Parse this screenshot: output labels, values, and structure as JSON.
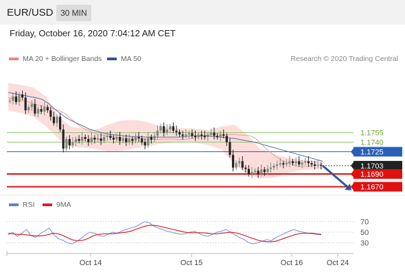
{
  "header": {
    "symbol": "EUR/USD",
    "timeframe": "30 MIN"
  },
  "datetime": "Friday, October 16, 2020 7:04:12 AM CET",
  "legend": {
    "ma20": {
      "label": "MA 20 + Bollinger Bands",
      "color": "#f08080"
    },
    "ma50": {
      "label": "MA 50",
      "color": "#2f5597"
    }
  },
  "credit": "Research © 2020 Trading Central",
  "rsi_legend": {
    "rsi": {
      "label": "RSI",
      "color": "#5b7fd6"
    },
    "ma9": {
      "label": "9MA",
      "color": "#e02020"
    }
  },
  "colors": {
    "up": "#7a8a7a",
    "down": "#222222",
    "green_level": "#8cc56a",
    "blue_level": "#2a5fb8",
    "red_level": "#e01010",
    "band_fill": "#fbd5d2",
    "arrow": "#2f5597"
  },
  "chart_data": [
    {
      "type": "candlestick",
      "title": "EUR/USD",
      "ylim": [
        1.1662,
        1.1845
      ],
      "x_tick_labels": [
        "Oct 14",
        "Oct 15",
        "Oct 16",
        "Oct 24"
      ],
      "levels": [
        {
          "value": "1.1755",
          "kind": "resistance",
          "color": "#8cc56a"
        },
        {
          "value": "1.1740",
          "kind": "resistance",
          "color": "#8cc56a"
        },
        {
          "value": "1.1725",
          "kind": "pivot",
          "color": "#2a5fb8"
        },
        {
          "value": "1.1703",
          "kind": "last_price",
          "color": "#222222"
        },
        {
          "value": "1.1690",
          "kind": "support",
          "color": "#e01010"
        },
        {
          "value": "1.1670",
          "kind": "support",
          "color": "#e01010"
        }
      ],
      "close_series": [
        1.1805,
        1.1812,
        1.1803,
        1.1815,
        1.181,
        1.179,
        1.1795,
        1.18,
        1.1785,
        1.1792,
        1.1788,
        1.1795,
        1.179,
        1.178,
        1.177,
        1.178,
        1.176,
        1.173,
        1.1745,
        1.1735,
        1.174,
        1.1745,
        1.1742,
        1.1748,
        1.1745,
        1.174,
        1.1747,
        1.1744,
        1.1746,
        1.1742,
        1.1748,
        1.175,
        1.1747,
        1.1744,
        1.1748,
        1.1742,
        1.1746,
        1.174,
        1.1745,
        1.1742,
        1.1748,
        1.1746,
        1.174,
        1.1735,
        1.1748,
        1.1744,
        1.175,
        1.1758,
        1.1765,
        1.1755,
        1.176,
        1.1765,
        1.1758,
        1.1756,
        1.1752,
        1.175,
        1.1752,
        1.1754,
        1.175,
        1.1748,
        1.1752,
        1.175,
        1.1748,
        1.1752,
        1.1755,
        1.175,
        1.1748,
        1.1752,
        1.175,
        1.174,
        1.172,
        1.17,
        1.1707,
        1.171,
        1.17,
        1.1698,
        1.169,
        1.1693,
        1.1695,
        1.169,
        1.1697,
        1.1693,
        1.1698,
        1.17,
        1.1703,
        1.1705,
        1.1707,
        1.1705,
        1.1707,
        1.171,
        1.1707,
        1.171,
        1.1705,
        1.1708,
        1.171,
        1.1707,
        1.1705,
        1.1703,
        1.1704,
        1.1703
      ],
      "ma20_series": [
        1.181,
        1.1808,
        1.1806,
        1.1805,
        1.1803,
        1.18,
        1.1798,
        1.1796,
        1.1794,
        1.1792,
        1.1789,
        1.1785,
        1.1778,
        1.1771,
        1.1765,
        1.176,
        1.1757,
        1.1753,
        1.1751,
        1.175,
        1.1749,
        1.1748,
        1.1747,
        1.1746,
        1.1746,
        1.1745,
        1.1745,
        1.1744,
        1.1744,
        1.1744,
        1.1745,
        1.1745,
        1.1745,
        1.1744,
        1.1744,
        1.1745,
        1.1746,
        1.1748,
        1.175,
        1.1752,
        1.1753,
        1.1753,
        1.1752,
        1.1752,
        1.1752,
        1.1751,
        1.1751,
        1.175,
        1.1746,
        1.1738,
        1.173,
        1.1723,
        1.1717,
        1.1712,
        1.1708,
        1.1705,
        1.1703,
        1.1702,
        1.1702,
        1.1703,
        1.1704,
        1.1705
      ],
      "ma50_series": [
        1.1818,
        1.1816,
        1.1814,
        1.1812,
        1.181,
        1.1807,
        1.18,
        1.179,
        1.1782,
        1.1775,
        1.177,
        1.1765,
        1.176,
        1.1757,
        1.1754,
        1.1752,
        1.1751,
        1.175,
        1.1749,
        1.1749,
        1.1748,
        1.1748,
        1.1748,
        1.1748,
        1.1748,
        1.1748,
        1.1749,
        1.175,
        1.175,
        1.175,
        1.1749,
        1.1748,
        1.1747,
        1.1746,
        1.1744,
        1.1742,
        1.174,
        1.1737,
        1.1734,
        1.1731,
        1.1728,
        1.1725,
        1.1722,
        1.1719,
        1.1716,
        1.1713,
        1.171
      ],
      "band_upper": [
        1.1833,
        1.183,
        1.1826,
        1.1812,
        1.178,
        1.1764,
        1.1762,
        1.176,
        1.1768,
        1.1774,
        1.1775,
        1.1772,
        1.1765,
        1.1762,
        1.1762,
        1.1761,
        1.1759,
        1.1765,
        1.1767,
        1.1752,
        1.173,
        1.1722,
        1.1716,
        1.1713,
        1.1711,
        1.171
      ],
      "band_lower": [
        1.179,
        1.1786,
        1.178,
        1.1765,
        1.1745,
        1.1733,
        1.1731,
        1.1729,
        1.1725,
        1.1726,
        1.173,
        1.1733,
        1.1737,
        1.1739,
        1.174,
        1.1739,
        1.1735,
        1.1728,
        1.1705,
        1.169,
        1.1683,
        1.1684,
        1.169,
        1.1695,
        1.1697,
        1.1698
      ],
      "forecast": {
        "from": "1.1703",
        "to": "1.1670"
      }
    },
    {
      "type": "line",
      "title": "RSI",
      "ylim": [
        15,
        85
      ],
      "y_tick_labels": [
        "70",
        "50",
        "30"
      ],
      "rsi_series": [
        45,
        50,
        42,
        48,
        55,
        44,
        40,
        47,
        52,
        58,
        46,
        38,
        35,
        30,
        28,
        32,
        38,
        45,
        50,
        48,
        44,
        42,
        46,
        50,
        48,
        52,
        55,
        58,
        60,
        65,
        70,
        68,
        62,
        58,
        55,
        52,
        50,
        48,
        46,
        47,
        50,
        52,
        48,
        44,
        42,
        46,
        50,
        52,
        55,
        50,
        45,
        40,
        36,
        30,
        28,
        30,
        33,
        36,
        34,
        40,
        44,
        48,
        52,
        55,
        52,
        50,
        48,
        47,
        46,
        45
      ],
      "ma9_series": [
        48,
        47,
        46,
        46,
        45,
        44,
        43,
        43,
        44,
        46,
        48,
        47,
        44,
        40,
        36,
        34,
        34,
        36,
        40,
        44,
        46,
        47,
        47,
        47,
        48,
        49,
        50,
        52,
        55,
        58,
        61,
        63,
        63,
        62,
        60,
        58,
        56,
        54,
        52,
        50,
        49,
        49,
        49,
        49,
        48,
        47,
        47,
        48,
        49,
        50,
        49,
        47,
        44,
        41,
        38,
        35,
        33,
        32,
        32,
        33,
        36,
        39,
        42,
        45,
        47,
        48,
        48,
        48,
        47,
        46
      ]
    }
  ]
}
